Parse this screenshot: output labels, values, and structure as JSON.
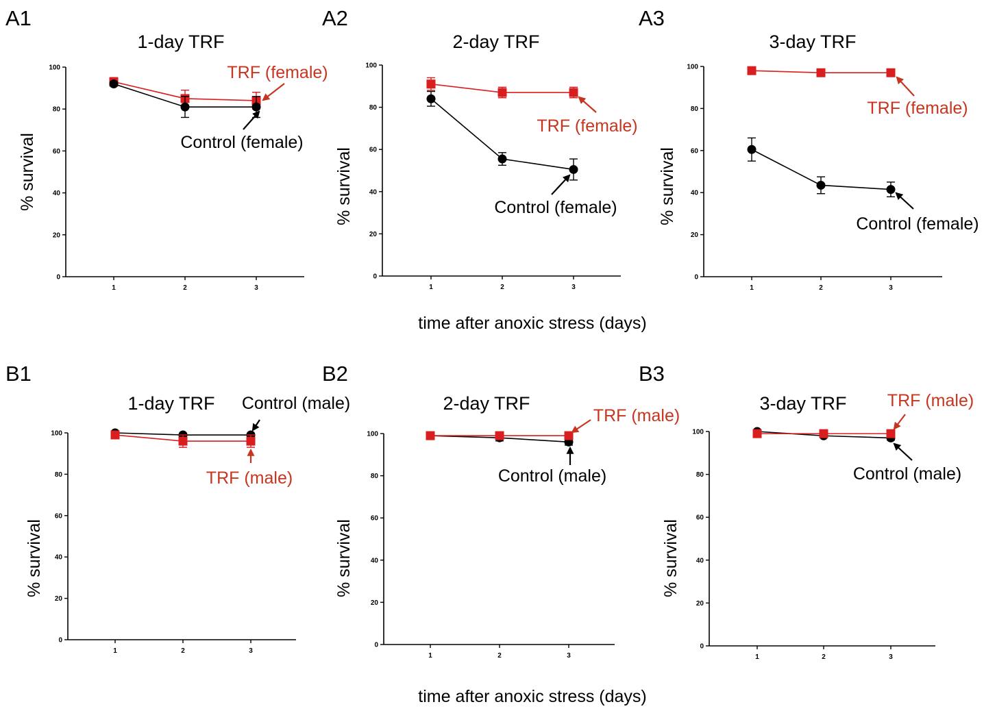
{
  "colors": {
    "trf": "#d81e1e",
    "trf_text": "#c8351f",
    "control": "#000000",
    "axis": "#000000"
  },
  "shared_xlabel_top": "time after anoxic stress (days)",
  "shared_xlabel_bottom": "time after anoxic stress (days)",
  "chart_data": [
    {
      "panel": "A1",
      "type": "line",
      "title": "1-day TRF",
      "ylabel": "% survival",
      "xlabel": "",
      "x": [
        1,
        2,
        3
      ],
      "xticks": [
        "1",
        "2",
        "3"
      ],
      "yticks": [
        "0",
        "20",
        "40",
        "60",
        "80",
        "100"
      ],
      "ylim": [
        0,
        100
      ],
      "grid": false,
      "series": [
        {
          "id": "trf",
          "marker": "square",
          "values": [
            93,
            85,
            84
          ],
          "err": [
            2,
            4,
            4
          ]
        },
        {
          "id": "control",
          "marker": "circle",
          "values": [
            92,
            81,
            81
          ],
          "err": [
            1,
            5,
            5
          ]
        }
      ],
      "annotations": [
        {
          "text": "TRF (female)",
          "series": "trf",
          "x": 3
        },
        {
          "text": "Control (female)",
          "series": "control",
          "x": 3
        }
      ]
    },
    {
      "panel": "A2",
      "type": "line",
      "title": "2-day TRF",
      "ylabel": "% survival",
      "xlabel": "",
      "x": [
        1,
        2,
        3
      ],
      "xticks": [
        "1",
        "2",
        "3"
      ],
      "yticks": [
        "0",
        "20",
        "40",
        "60",
        "80",
        "100"
      ],
      "ylim": [
        0,
        100
      ],
      "grid": false,
      "series": [
        {
          "id": "trf",
          "marker": "square",
          "values": [
            91,
            87,
            87
          ],
          "err": [
            3,
            2.5,
            2.5
          ]
        },
        {
          "id": "control",
          "marker": "circle",
          "values": [
            84,
            55.5,
            50.5
          ],
          "err": [
            3.5,
            3,
            5
          ]
        }
      ],
      "annotations": [
        {
          "text": "TRF (female)",
          "series": "trf",
          "x": 3
        },
        {
          "text": "Control (female)",
          "series": "control",
          "x": 3
        }
      ]
    },
    {
      "panel": "A3",
      "type": "line",
      "title": "3-day TRF",
      "ylabel": "% survival",
      "xlabel": "",
      "x": [
        1,
        2,
        3
      ],
      "xticks": [
        "1",
        "2",
        "3"
      ],
      "yticks": [
        "0",
        "20",
        "40",
        "60",
        "80",
        "100"
      ],
      "ylim": [
        0,
        100
      ],
      "grid": false,
      "series": [
        {
          "id": "trf",
          "marker": "square",
          "values": [
            98,
            97,
            97
          ],
          "err": [
            0.5,
            1,
            1
          ]
        },
        {
          "id": "control",
          "marker": "circle",
          "values": [
            60.5,
            43.5,
            41.5
          ],
          "err": [
            5.5,
            4,
            3.5
          ]
        }
      ],
      "annotations": [
        {
          "text": "TRF (female)",
          "series": "trf",
          "x": 3
        },
        {
          "text": "Control (female)",
          "series": "control",
          "x": 3
        }
      ]
    },
    {
      "panel": "B1",
      "type": "line",
      "title": "1-day TRF",
      "ylabel": "% survival",
      "xlabel": "",
      "x": [
        1,
        2,
        3
      ],
      "xticks": [
        "1",
        "2",
        "3"
      ],
      "yticks": [
        "0",
        "20",
        "40",
        "60",
        "80",
        "100"
      ],
      "ylim": [
        0,
        100
      ],
      "grid": false,
      "series": [
        {
          "id": "control",
          "marker": "circle",
          "values": [
            100,
            99,
            99
          ],
          "err": [
            0.5,
            0.5,
            0.5
          ]
        },
        {
          "id": "trf",
          "marker": "square",
          "values": [
            99,
            96,
            96
          ],
          "err": [
            1,
            3,
            3
          ]
        }
      ],
      "annotations": [
        {
          "text": "Control (male)",
          "series": "control",
          "x": 3
        },
        {
          "text": "TRF (male)",
          "series": "trf",
          "x": 3
        }
      ]
    },
    {
      "panel": "B2",
      "type": "line",
      "title": "2-day TRF",
      "ylabel": "% survival",
      "xlabel": "",
      "x": [
        1,
        2,
        3
      ],
      "xticks": [
        "1",
        "2",
        "3"
      ],
      "yticks": [
        "0",
        "20",
        "40",
        "60",
        "80",
        "100"
      ],
      "ylim": [
        0,
        100
      ],
      "grid": false,
      "series": [
        {
          "id": "control",
          "marker": "circle",
          "values": [
            99,
            98,
            96
          ],
          "err": [
            0.5,
            1.5,
            1.5
          ]
        },
        {
          "id": "trf",
          "marker": "square",
          "values": [
            99,
            99,
            99
          ],
          "err": [
            0.5,
            1.5,
            1
          ]
        }
      ],
      "annotations": [
        {
          "text": "TRF (male)",
          "series": "trf",
          "x": 3
        },
        {
          "text": "Control (male)",
          "series": "control",
          "x": 3
        }
      ]
    },
    {
      "panel": "B3",
      "type": "line",
      "title": "3-day TRF",
      "ylabel": "% survival",
      "xlabel": "",
      "x": [
        1,
        2,
        3
      ],
      "xticks": [
        "1",
        "2",
        "3"
      ],
      "yticks": [
        "0",
        "20",
        "40",
        "60",
        "80",
        "100"
      ],
      "ylim": [
        0,
        100
      ],
      "grid": false,
      "series": [
        {
          "id": "control",
          "marker": "circle",
          "values": [
            100,
            98,
            97
          ],
          "err": [
            0.5,
            0.5,
            1
          ]
        },
        {
          "id": "trf",
          "marker": "square",
          "values": [
            99,
            99,
            99
          ],
          "err": [
            0.5,
            0.5,
            0.5
          ]
        }
      ],
      "annotations": [
        {
          "text": "TRF (male)",
          "series": "trf",
          "x": 3
        },
        {
          "text": "Control (male)",
          "series": "control",
          "x": 3
        }
      ]
    }
  ]
}
